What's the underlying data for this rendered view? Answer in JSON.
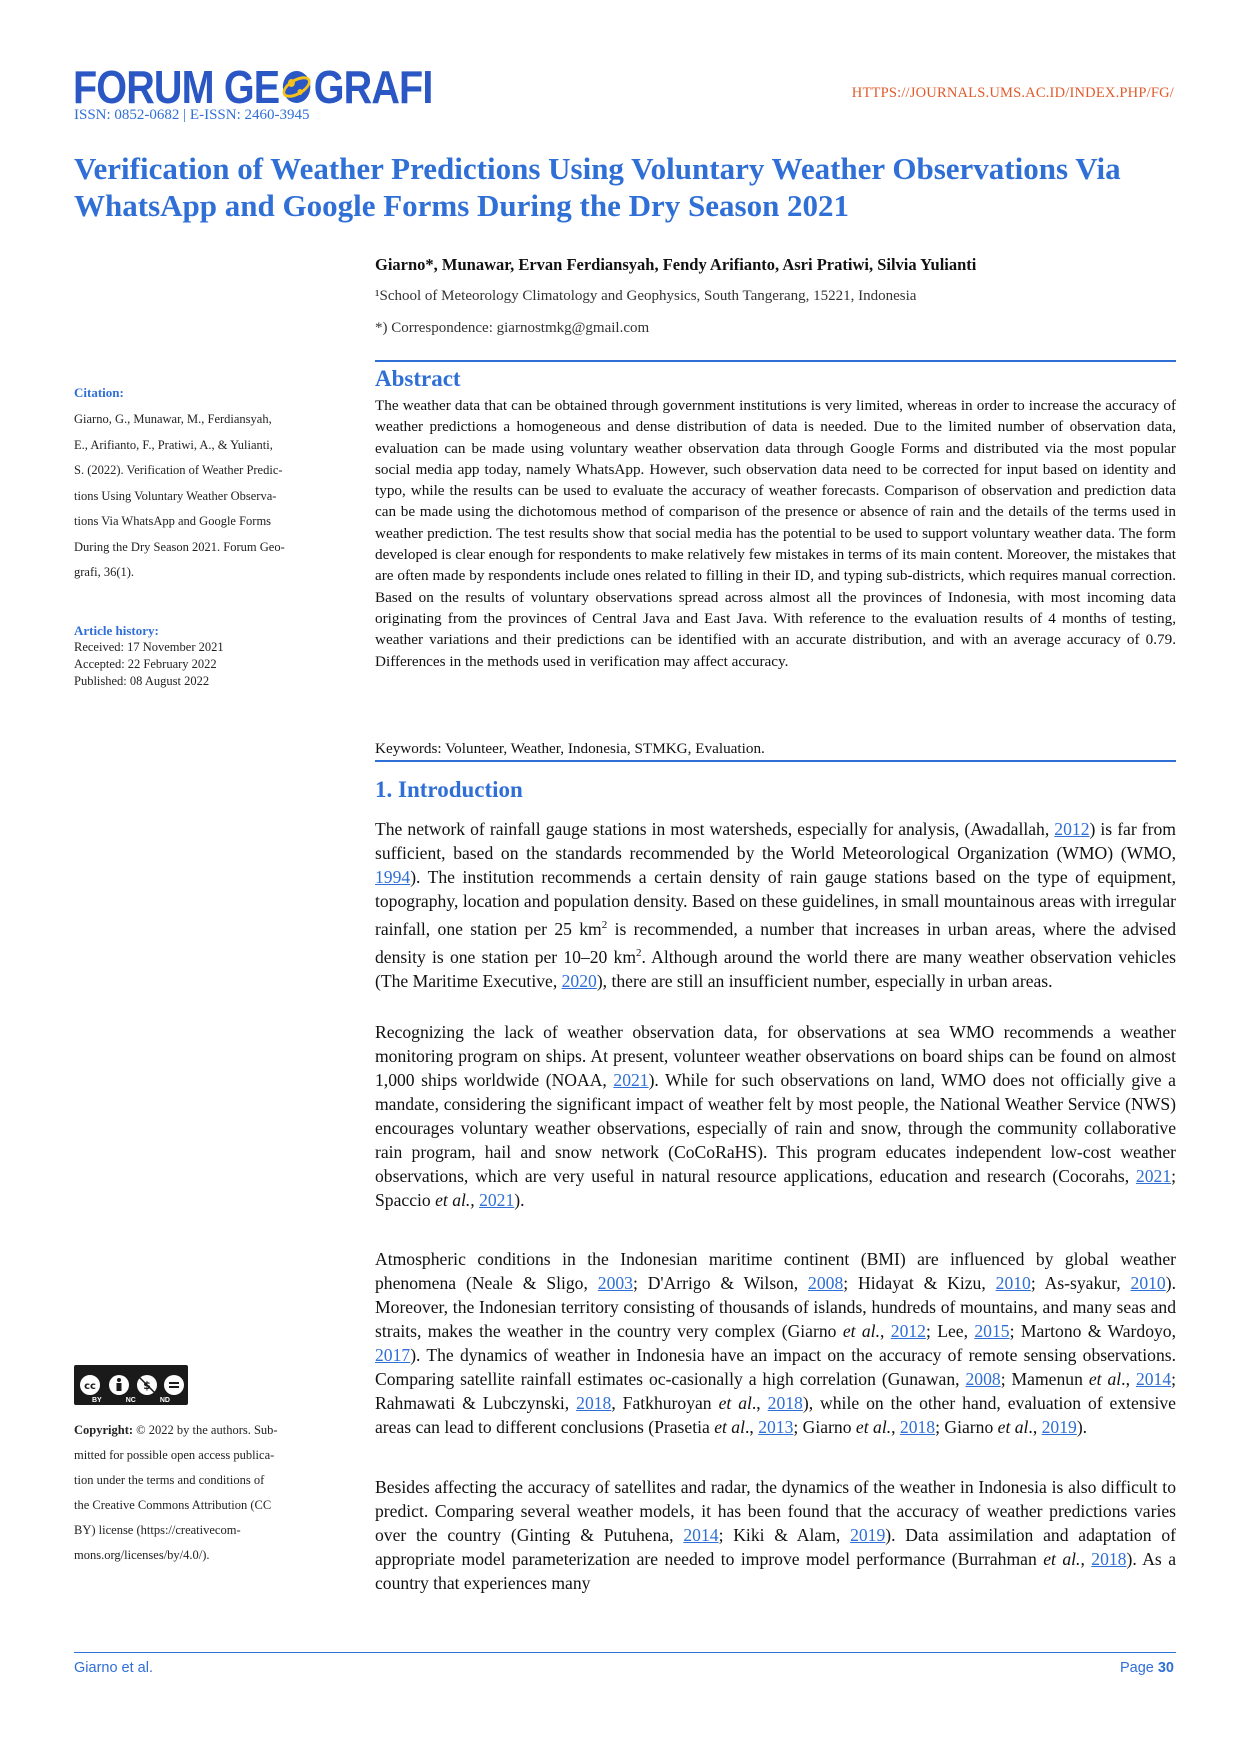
{
  "header": {
    "logo_left": "FORUM GE",
    "logo_right": "GRAFI",
    "issn": "ISSN: 0852-0682 | E-ISSN: 2460-3945",
    "url": "HTTPS://JOURNALS.UMS.AC.ID/INDEX.PHP/FG/"
  },
  "article": {
    "title": "Verification of Weather Predictions Using Voluntary Weather Observations Via WhatsApp and Google Forms During the Dry Season 2021",
    "authors": "Giarno*, Munawar, Ervan Ferdiansyah, Fendy Arifianto, Asri Pratiwi, Silvia Yulianti",
    "affiliation": "¹School of Meteorology Climatology and Geophysics, South Tangerang, 15221, Indonesia",
    "correspondence": "*) Correspondence: giarnostmkg@gmail.com"
  },
  "sidebar": {
    "citation_label": "Citation:",
    "citation_lines": [
      "Giarno, G., Munawar, M., Ferdiansyah,",
      "E., Arifianto, F., Pratiwi, A., & Yulianti,",
      "S. (2022). Verification of Weather Predic-",
      "tions Using Voluntary Weather Observa-",
      "tions Via WhatsApp and Google Forms",
      "During the Dry Season 2021. Forum Geo-",
      "grafi, 36(1)."
    ],
    "history_label": "Article history:",
    "history_lines": [
      "Received: 17 November 2021",
      "Accepted: 22 February 2022",
      "Published: 08 August 2022"
    ],
    "cc_labels": [
      "BY",
      "NC",
      "ND"
    ],
    "copyright_bold": "Copyright:",
    "copyright_lines": [
      " © 2022 by the authors. Sub-",
      "mitted for possible open access publica-",
      "tion under the terms and conditions of",
      "the Creative Commons Attribution (CC",
      "BY) license (https://creativecom-",
      "mons.org/licenses/by/4.0/)."
    ]
  },
  "abstract": {
    "heading": "Abstract",
    "text": "The weather data that can be obtained through government institutions is very limited, whereas in order to increase the accuracy of weather predictions a homogeneous and dense distribution of data is needed. Due to the limited number of observation data, evaluation can be made using voluntary weather observation data through Google Forms and distributed via the most popular social media app today, namely WhatsApp. However, such observation data need to be corrected for input based on identity and typo, while the results can be used to evaluate the accuracy of weather forecasts. Comparison of observation and prediction data can be made using the dichotomous method of comparison of the presence or absence of rain and the details of the terms used in weather prediction. The test results show that social media has the potential to be used to support voluntary weather data. The form developed is clear enough for respondents to make relatively few mistakes in terms of its main content. Moreover, the mistakes that are often made by respondents include ones related to filling in their ID, and typing sub-districts, which requires manual correction. Based on the results of voluntary observations spread across almost all the provinces of Indonesia, with most incoming data originating from the provinces of Central Java and East Java. With reference to the evaluation results of 4 months of testing, weather variations and their predictions can be identified with an accurate distribution, and with an average accuracy of 0.79. Differences in the methods used in verification may affect accuracy.",
    "keywords": "Keywords: Volunteer, Weather, Indonesia, STMKG, Evaluation."
  },
  "introduction": {
    "heading": "1. Introduction",
    "p1": [
      "The network of rainfall gauge stations in most watersheds, especially for analysis, (Awadallah, ",
      {
        "link": "2012"
      },
      ") is far from sufficient, based on the standards recommended by the World Meteorological Organization (WMO) (WMO, ",
      {
        "link": "1994"
      },
      "). The institution recommends a certain density of rain gauge stations based on the type of equipment, topography, location and population density. Based on these guidelines, in small mountainous areas with irregular rainfall, one station per 25 km",
      {
        "sup": "2"
      },
      " is recommended, a number that increases in urban areas, where the advised density is one station per 10–20 km",
      {
        "sup": "2"
      },
      ". Although around the world there are many weather observation vehicles (The Maritime Executive, ",
      {
        "link": "2020"
      },
      "), there are still an insufficient number, especially in urban areas."
    ],
    "p2": [
      "Recognizing the lack of weather observation data, for observations at sea WMO recommends a weather monitoring program on ships. At present, volunteer weather observations on board ships can be found on almost 1,000 ships worldwide (NOAA, ",
      {
        "link": "2021"
      },
      "). While for such observations on land, WMO does not officially give a mandate, considering the significant impact of weather felt by most people, the National Weather Service (NWS) encourages voluntary weather observations, especially of rain and snow, through the community collaborative rain program, hail and snow network (CoCoRaHS). This program educates independent low-cost weather observations, which are very useful in natural resource applications, education and research (Cocorahs, ",
      {
        "link": "2021"
      },
      "; Spaccio ",
      {
        "em": "et al.,"
      },
      " ",
      {
        "link": "2021"
      },
      ")."
    ],
    "p3": [
      "Atmospheric conditions in the Indonesian maritime continent (BMI) are influenced by global weather phenomena (Neale & Sligo, ",
      {
        "link": "2003"
      },
      "; D'Arrigo & Wilson, ",
      {
        "link": "2008"
      },
      "; Hidayat & Kizu, ",
      {
        "link": "2010"
      },
      "; As-syakur, ",
      {
        "link": "2010"
      },
      "). Moreover, the Indonesian territory consisting of thousands of islands, hundreds of mountains, and many seas and straits, makes the weather in the country very complex (Giarno ",
      {
        "em": "et al."
      },
      ", ",
      {
        "link": "2012"
      },
      "; Lee, ",
      {
        "link": "2015"
      },
      "; Martono & Wardoyo, ",
      {
        "link": "2017"
      },
      "). The dynamics of weather in Indonesia have an impact on the accuracy of remote sensing observations. Comparing satellite rainfall estimates oc-casionally a high correlation (Gunawan, ",
      {
        "link": "2008"
      },
      "; Mamenun ",
      {
        "em": "et al"
      },
      "., ",
      {
        "link": "2014"
      },
      "; Rahmawati & Lubczynski, ",
      {
        "link": "2018"
      },
      ", Fatkhuroyan ",
      {
        "em": "et al"
      },
      "., ",
      {
        "link": "2018"
      },
      "), while on the other hand, evaluation of extensive areas can lead to different conclusions (Prasetia ",
      {
        "em": "et al"
      },
      "., ",
      {
        "link": "2013"
      },
      "; Giarno ",
      {
        "em": "et al."
      },
      ", ",
      {
        "link": "2018"
      },
      "; Giarno ",
      {
        "em": "et al"
      },
      "., ",
      {
        "link": "2019"
      },
      ")."
    ],
    "p4": [
      "Besides affecting the accuracy of satellites and radar, the dynamics of the weather in Indonesia is also difficult to predict. Comparing several weather models, it has been found that the accuracy of weather predictions varies over the country (Ginting & Putuhena, ",
      {
        "link": "2014"
      },
      "; Kiki & Alam, ",
      {
        "link": "2019"
      },
      "). Data assimilation and adaptation of appropriate model parameterization are needed to improve model performance (Burrahman ",
      {
        "em": "et al."
      },
      ", ",
      {
        "link": "2018"
      },
      "). As a country that experiences many"
    ]
  },
  "footer": {
    "left": "Giarno et al.",
    "page_label": "Page ",
    "page_number": "30"
  },
  "colors": {
    "accent": "#2f6fd6",
    "url": "#e05a2b"
  }
}
